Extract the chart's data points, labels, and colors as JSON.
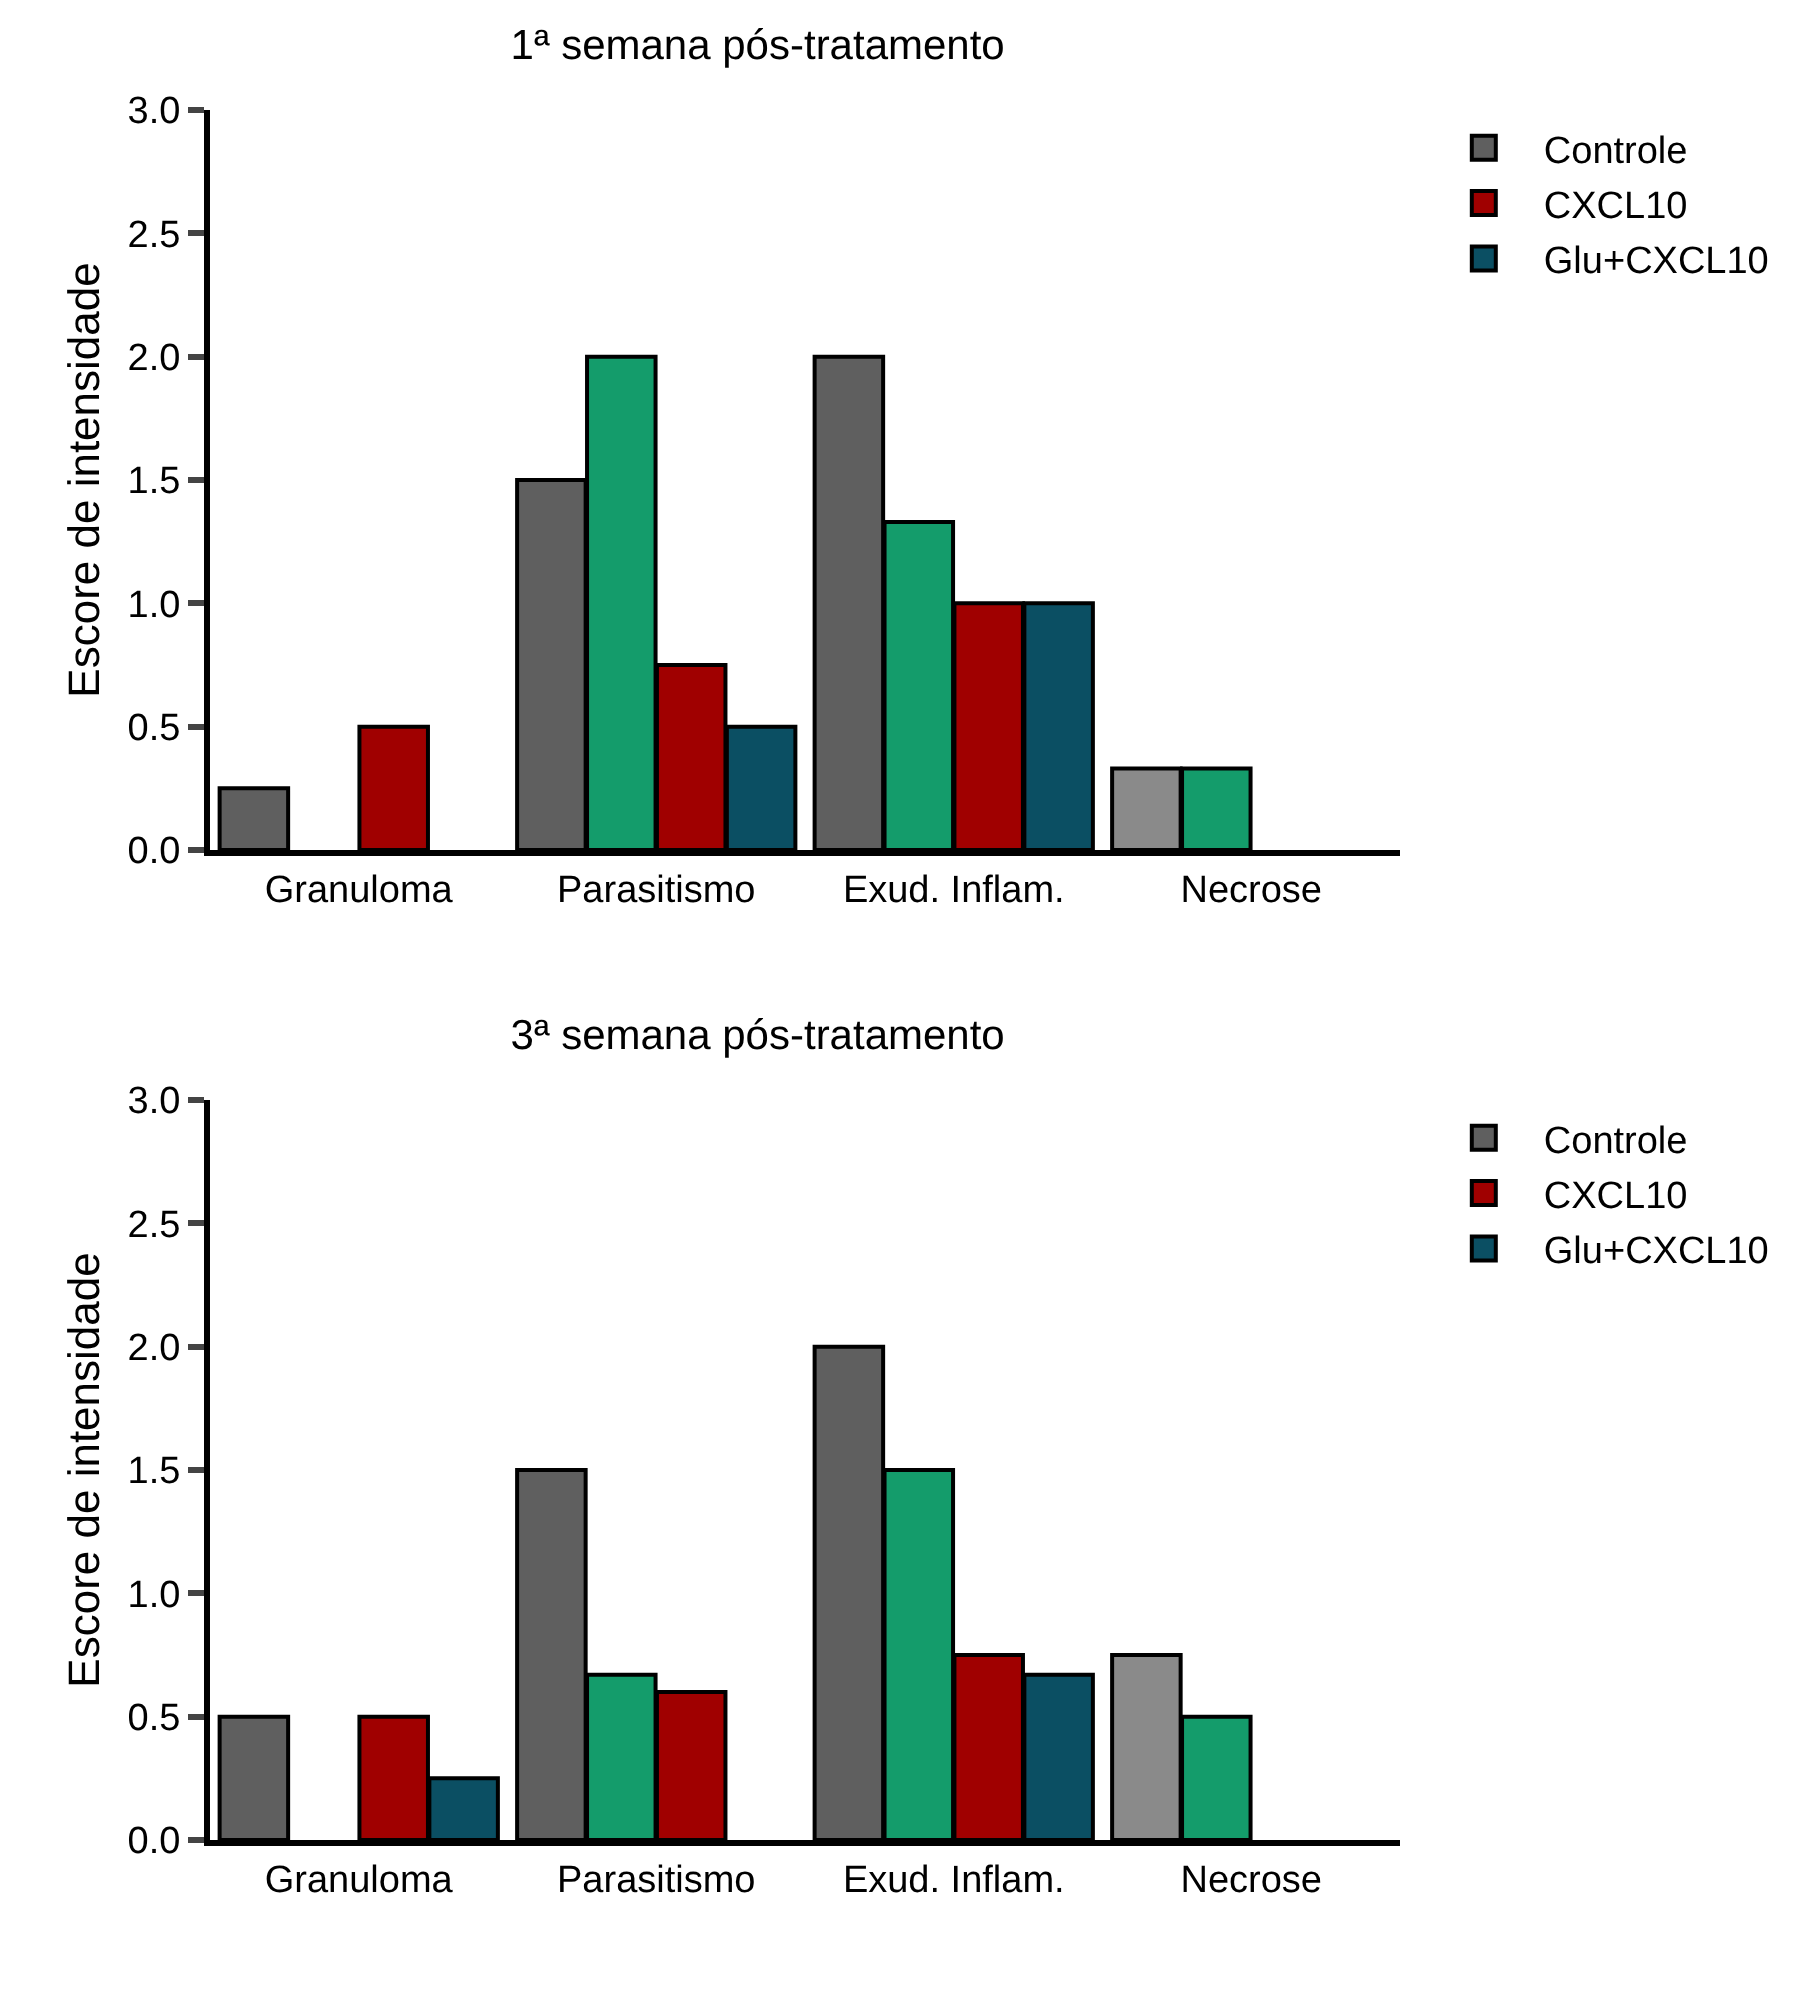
{
  "chart_data": [
    {
      "type": "bar",
      "title": "1ª semana pós-tratamento",
      "ylabel": "Escore de intensidade",
      "categories": [
        "Granuloma",
        "Parasitismo",
        "Exud. Inflam.",
        "Necrose"
      ],
      "series": [
        {
          "name": "Controle",
          "color": "#5f5f5f",
          "colors": [
            null,
            null,
            null,
            "#8a8a8a"
          ],
          "values": [
            0.25,
            1.5,
            2.0,
            0.33
          ]
        },
        {
          "color": "#149c6b",
          "values": [
            null,
            2.0,
            1.33,
            0.33
          ]
        },
        {
          "name": "CXCL10",
          "color": "#a00000",
          "values": [
            0.5,
            0.75,
            1.0,
            null
          ]
        },
        {
          "name": "Glu+CXCL10",
          "color": "#0b4f63",
          "values": [
            null,
            0.5,
            1.0,
            null
          ]
        }
      ],
      "ylim": [
        0,
        3
      ],
      "yticks": [
        {
          "value": 0,
          "label": "0.0"
        },
        {
          "value": 0.5,
          "label": "0.5"
        },
        {
          "value": 1,
          "label": "1.0"
        },
        {
          "value": 1.5,
          "label": "1.5"
        },
        {
          "value": 2,
          "label": "2.0"
        },
        {
          "value": 2.5,
          "label": "2.5"
        },
        {
          "value": 3,
          "label": "3.0"
        }
      ],
      "grid": false,
      "legend": "top right"
    },
    {
      "type": "bar",
      "title": "3ª semana pós-tratamento",
      "ylabel": "Escore de intensidade",
      "categories": [
        "Granuloma",
        "Parasitismo",
        "Exud. Inflam.",
        "Necrose"
      ],
      "series": [
        {
          "name": "Controle",
          "color": "#5f5f5f",
          "colors": [
            null,
            null,
            null,
            "#8a8a8a"
          ],
          "values": [
            0.5,
            1.5,
            2.0,
            0.75
          ]
        },
        {
          "color": "#149c6b",
          "values": [
            null,
            0.67,
            1.5,
            0.5
          ]
        },
        {
          "name": "CXCL10",
          "color": "#a00000",
          "values": [
            0.5,
            0.6,
            0.75,
            null
          ]
        },
        {
          "name": "Glu+CXCL10",
          "color": "#0b4f63",
          "values": [
            0.25,
            null,
            0.67,
            null
          ]
        }
      ],
      "ylim": [
        0,
        3
      ],
      "yticks": [
        {
          "value": 0,
          "label": "0.0"
        },
        {
          "value": 0.5,
          "label": "0.5"
        },
        {
          "value": 1,
          "label": "1.0"
        },
        {
          "value": 1.5,
          "label": "1.5"
        },
        {
          "value": 2,
          "label": "2.0"
        },
        {
          "value": 2.5,
          "label": "2.5"
        },
        {
          "value": 3,
          "label": "3.0"
        }
      ],
      "grid": false,
      "legend": "top right"
    }
  ]
}
